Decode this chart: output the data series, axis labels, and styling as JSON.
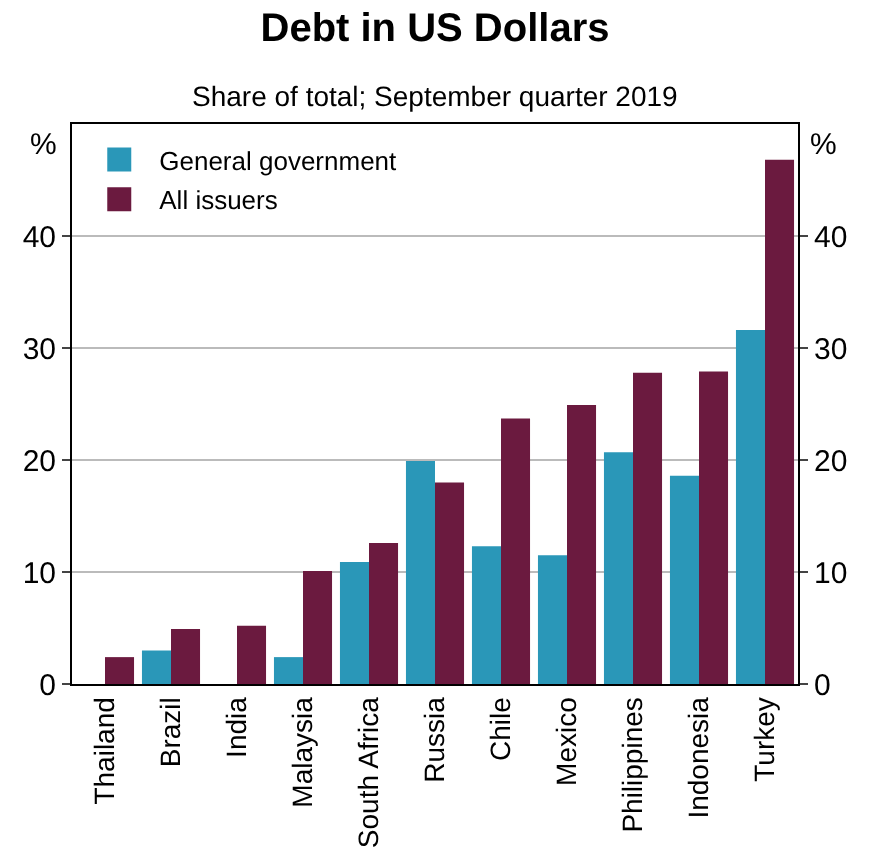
{
  "chart_data": {
    "type": "bar",
    "title": "Debt in US Dollars",
    "subtitle": "Share of total; September quarter 2019",
    "ylabel": "%",
    "y2label": "%",
    "categories": [
      "Thailand",
      "Brazil",
      "India",
      "Malaysia",
      "South Africa",
      "Russia",
      "Chile",
      "Mexico",
      "Philippines",
      "Indonesia",
      "Turkey"
    ],
    "series": [
      {
        "name": "General government",
        "color": "#2a97b8",
        "values": [
          null,
          3.0,
          null,
          2.4,
          10.9,
          19.9,
          12.3,
          11.5,
          20.7,
          18.6,
          31.6
        ]
      },
      {
        "name": "All issuers",
        "color": "#6b1a3f",
        "values": [
          2.4,
          4.9,
          5.2,
          10.1,
          12.6,
          18.0,
          23.7,
          24.9,
          27.8,
          27.9,
          46.8
        ]
      }
    ],
    "ylim": [
      0,
      50
    ],
    "yticks": [
      0,
      10,
      20,
      30,
      40
    ],
    "y2lim": [
      0,
      50
    ],
    "y2ticks": [
      0,
      10,
      20,
      30,
      40
    ],
    "grid": "y",
    "legend": "top left"
  }
}
